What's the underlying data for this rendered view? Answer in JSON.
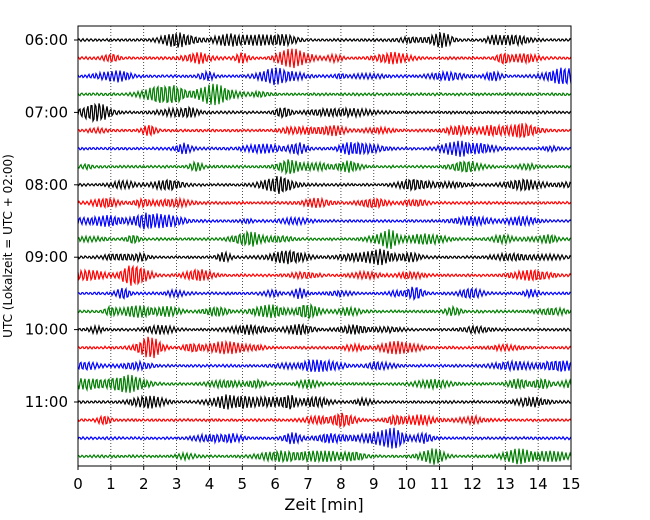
{
  "chart_data": {
    "type": "line",
    "subtype": "helicorder",
    "xlabel": "Zeit  [min]",
    "ylabel": "UTC (Lokalzeit = UTC + 02:00)",
    "xlim": [
      0,
      15
    ],
    "xticks": [
      0,
      1,
      2,
      3,
      4,
      5,
      6,
      7,
      8,
      9,
      10,
      11,
      12,
      13,
      14,
      15
    ],
    "x_grid": "dotted vertical at each minute",
    "row_interval_minutes": 15,
    "row_count": 24,
    "start_time": "06:00",
    "y_tick_labels": [
      "06:00",
      "07:00",
      "08:00",
      "09:00",
      "10:00",
      "11:00"
    ],
    "y_tick_rows": [
      0,
      4,
      8,
      12,
      16,
      20
    ],
    "color_cycle": [
      "#000000",
      "#ff0000",
      "#0000ff",
      "#007f00"
    ]
  }
}
